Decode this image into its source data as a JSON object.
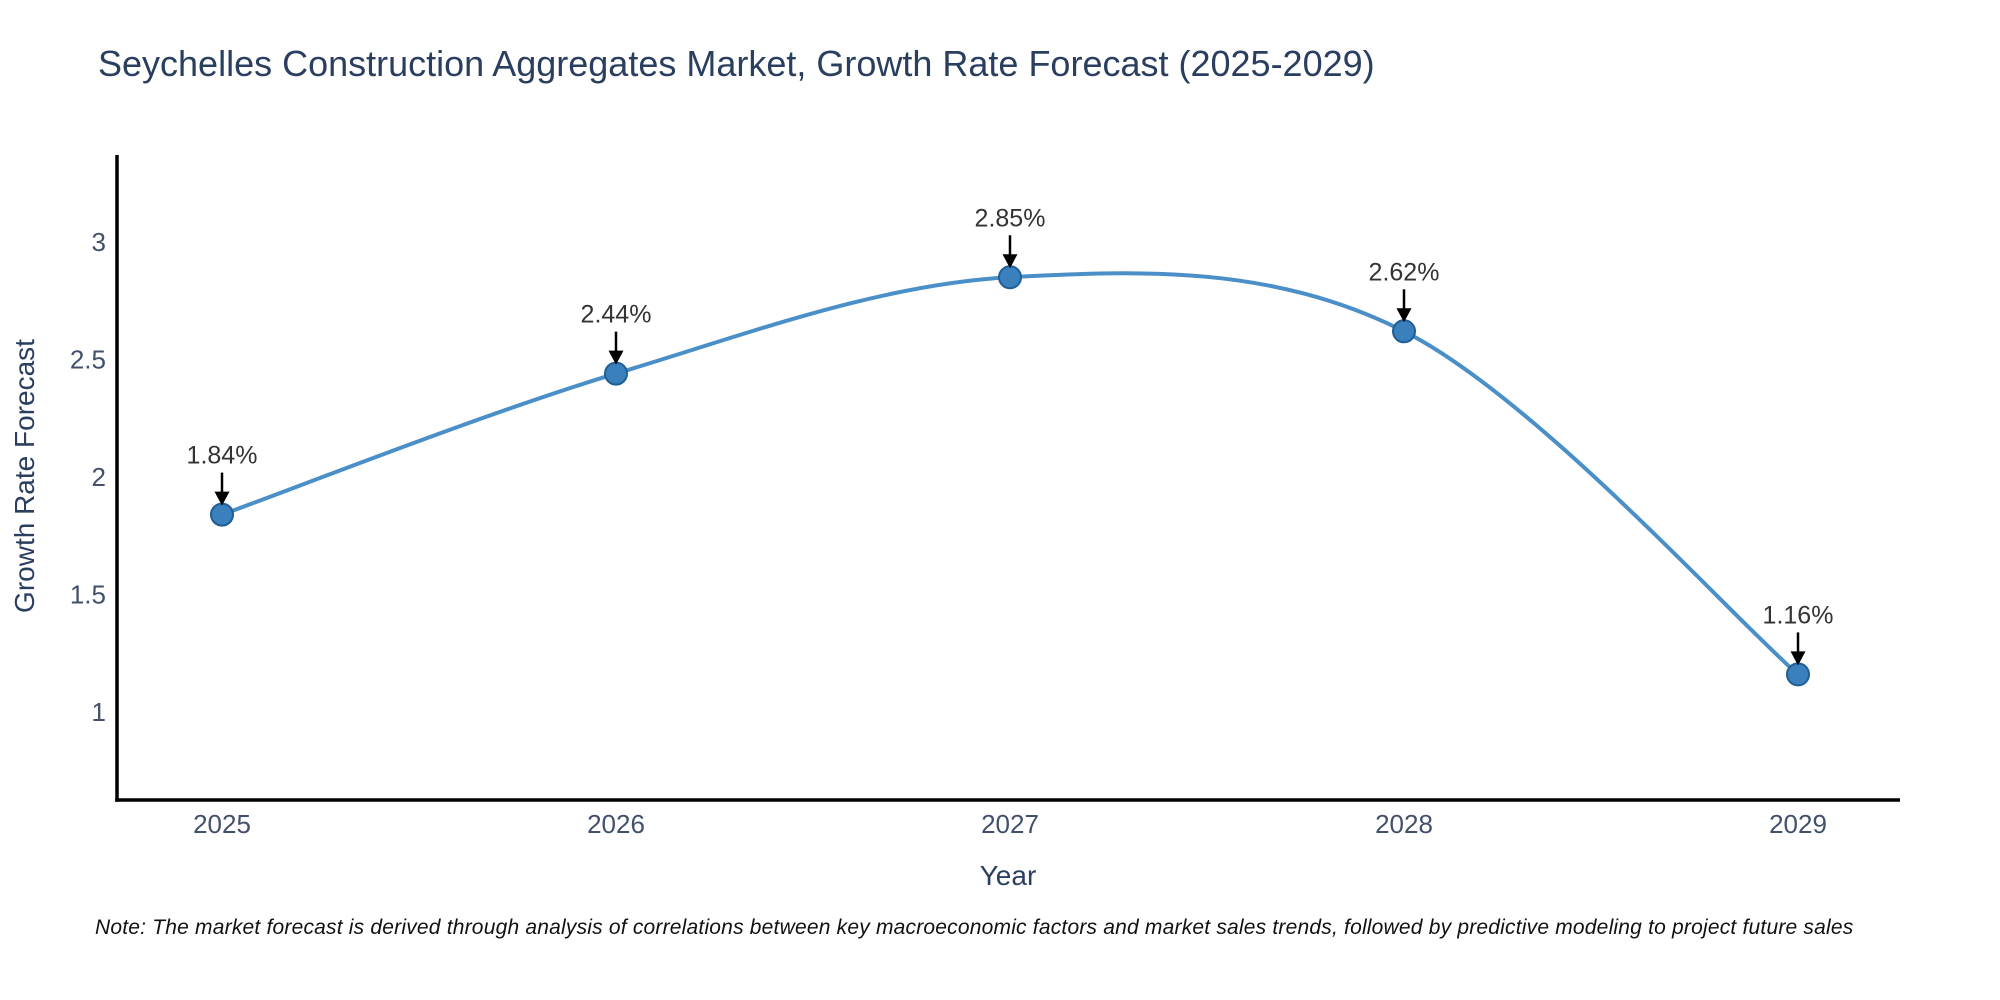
{
  "chart_data": {
    "type": "line",
    "title": "Seychelles Construction Aggregates Market, Growth Rate Forecast (2025-2029)",
    "xlabel": "Year",
    "ylabel": "Growth Rate Forecast",
    "x": [
      2025,
      2026,
      2027,
      2028,
      2029
    ],
    "y": [
      1.84,
      2.44,
      2.85,
      2.62,
      1.16
    ],
    "point_labels": [
      "1.84%",
      "2.44%",
      "2.85%",
      "2.62%",
      "1.16%"
    ],
    "xtick_labels": [
      "2025",
      "2026",
      "2027",
      "2028",
      "2029"
    ],
    "ytick_values": [
      1,
      1.5,
      2,
      2.5,
      3
    ],
    "ytick_labels": [
      "1",
      "1.5",
      "2",
      "2.5",
      "3"
    ],
    "ylim": [
      0.63,
      3.37
    ],
    "xlim": [
      2024.73,
      2029.26
    ],
    "grid": false,
    "legend": false,
    "line_smoothing": "spline",
    "colors": {
      "line": "#4a8fc7",
      "marker_fill": "#3a80bd",
      "marker_edge": "#205e94",
      "axis": "#000000",
      "title_text": "#2a3f5f",
      "tick_text": "#42506b",
      "annotation_text": "#333333",
      "annotation_arrow": "#000000"
    },
    "note": "Note: The market forecast is derived through analysis of correlations between key macroeconomic factors and market sales trends, followed by predictive modeling to project future sales"
  }
}
